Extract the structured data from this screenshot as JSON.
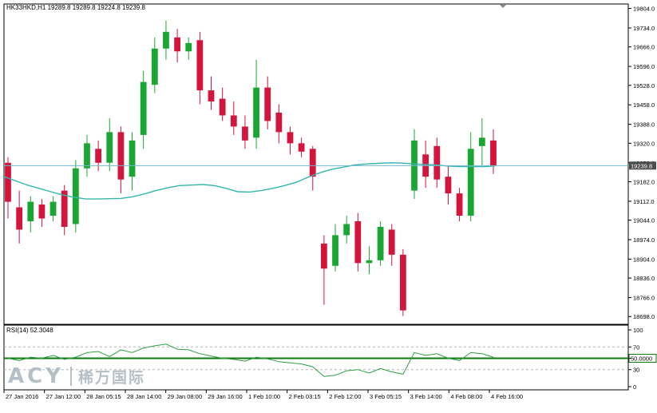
{
  "window": {
    "title": "HK33HKD,H1  19289.8 19289.8 19224.8 19239.8"
  },
  "colors": {
    "bull": "#1aa632",
    "bear": "#d3143d",
    "ma": "#35b5ac",
    "current_price_line": "#73b9c9",
    "current_price_label_bg": "#4d4d4d",
    "rsi_line": "#2f9e44",
    "rsi_level": "#0c7a0c",
    "grid_border": "#000000"
  },
  "watermark": {
    "latin": "ACY",
    "cjk": "稀万国际"
  },
  "chart_data": [
    {
      "type": "candlestick",
      "symbol": "HK33HKD",
      "timeframe": "H1",
      "ylim": [
        18670,
        19820
      ],
      "y_ticks": [
        "19804.0",
        "19734.0",
        "19666.0",
        "19596.0",
        "19528.0",
        "19458.0",
        "19388.0",
        "19320.0",
        "19250.0",
        "19182.0",
        "19112.0",
        "19044.0",
        "18974.0",
        "18904.0",
        "18836.0",
        "18766.0",
        "18698.0"
      ],
      "x_labels": [
        "27 Jan 2016",
        "27 Jan 12:00",
        "28 Jan 05:15",
        "28 Jan 14:00",
        "29 Jan 08:00",
        "29 Jan 16:00",
        "1 Feb 10:00",
        "2 Feb 03:15",
        "2 Feb 12:00",
        "3 Feb 05:15",
        "3 Feb 14:00",
        "4 Feb 08:00",
        "4 Feb 16:00"
      ],
      "current_price": "19239.8",
      "moving_average": [
        19200,
        19185,
        19170,
        19158,
        19146,
        19135,
        19126,
        19120,
        19120,
        19121,
        19122,
        19128,
        19138,
        19150,
        19160,
        19168,
        19170,
        19172,
        19168,
        19158,
        19146,
        19145,
        19150,
        19158,
        19168,
        19180,
        19198,
        19214,
        19226,
        19234,
        19242,
        19246,
        19248,
        19250,
        19249,
        19246,
        19244,
        19242,
        19238,
        19236,
        19236,
        19236,
        19238
      ],
      "candles": [
        [
          19250,
          19110,
          19270,
          19050
        ],
        [
          19090,
          19010,
          19150,
          18960
        ],
        [
          19040,
          19110,
          19130,
          19000
        ],
        [
          19100,
          19050,
          19120,
          19020
        ],
        [
          19060,
          19110,
          19130,
          19040
        ],
        [
          19150,
          19020,
          19170,
          18990
        ],
        [
          19030,
          19230,
          19260,
          19000
        ],
        [
          19230,
          19320,
          19350,
          19200
        ],
        [
          19300,
          19250,
          19330,
          19220
        ],
        [
          19250,
          19360,
          19410,
          19220
        ],
        [
          19360,
          19190,
          19380,
          19140
        ],
        [
          19200,
          19330,
          19360,
          19150
        ],
        [
          19350,
          19540,
          19580,
          19300
        ],
        [
          19530,
          19660,
          19700,
          19500
        ],
        [
          19660,
          19720,
          19760,
          19620
        ],
        [
          19700,
          19650,
          19730,
          19610
        ],
        [
          19650,
          19680,
          19700,
          19620
        ],
        [
          19690,
          19510,
          19720,
          19460
        ],
        [
          19510,
          19470,
          19560,
          19440
        ],
        [
          19480,
          19420,
          19520,
          19400
        ],
        [
          19420,
          19380,
          19470,
          19350
        ],
        [
          19380,
          19330,
          19420,
          19300
        ],
        [
          19340,
          19520,
          19620,
          19300
        ],
        [
          19520,
          19400,
          19560,
          19370
        ],
        [
          19430,
          19360,
          19460,
          19320
        ],
        [
          19360,
          19320,
          19380,
          19280
        ],
        [
          19320,
          19290,
          19340,
          19270
        ],
        [
          19300,
          19200,
          19310,
          19150
        ],
        [
          18960,
          18870,
          18990,
          18740
        ],
        [
          18880,
          18990,
          19030,
          18860
        ],
        [
          18990,
          19030,
          19060,
          18960
        ],
        [
          19040,
          18890,
          19070,
          18860
        ],
        [
          18890,
          18900,
          18950,
          18850
        ],
        [
          18900,
          19020,
          19040,
          18880
        ],
        [
          19010,
          18920,
          19030,
          18880
        ],
        [
          18920,
          18720,
          18940,
          18700
        ],
        [
          19150,
          19330,
          19370,
          19120
        ],
        [
          19280,
          19200,
          19330,
          19160
        ],
        [
          19310,
          19190,
          19340,
          19160
        ],
        [
          19200,
          19140,
          19240,
          19100
        ],
        [
          19140,
          19060,
          19160,
          19040
        ],
        [
          19060,
          19300,
          19360,
          19040
        ],
        [
          19310,
          19340,
          19410,
          19240
        ],
        [
          19330,
          19240,
          19370,
          19210
        ]
      ]
    },
    {
      "type": "line",
      "name": "RSI(14) 52.3048",
      "ylim": [
        0,
        100
      ],
      "y_ticks": [
        "100",
        "70",
        "50.0000",
        "30",
        "0"
      ],
      "level": "50.0000",
      "values": [
        50,
        46,
        52,
        50,
        55,
        48,
        52,
        60,
        62,
        53,
        65,
        60,
        68,
        72,
        75,
        66,
        65,
        58,
        54,
        50,
        48,
        45,
        52,
        49,
        44,
        42,
        40,
        35,
        18,
        20,
        28,
        30,
        24,
        32,
        26,
        22,
        60,
        55,
        58,
        50,
        46,
        60,
        58,
        52
      ]
    }
  ]
}
